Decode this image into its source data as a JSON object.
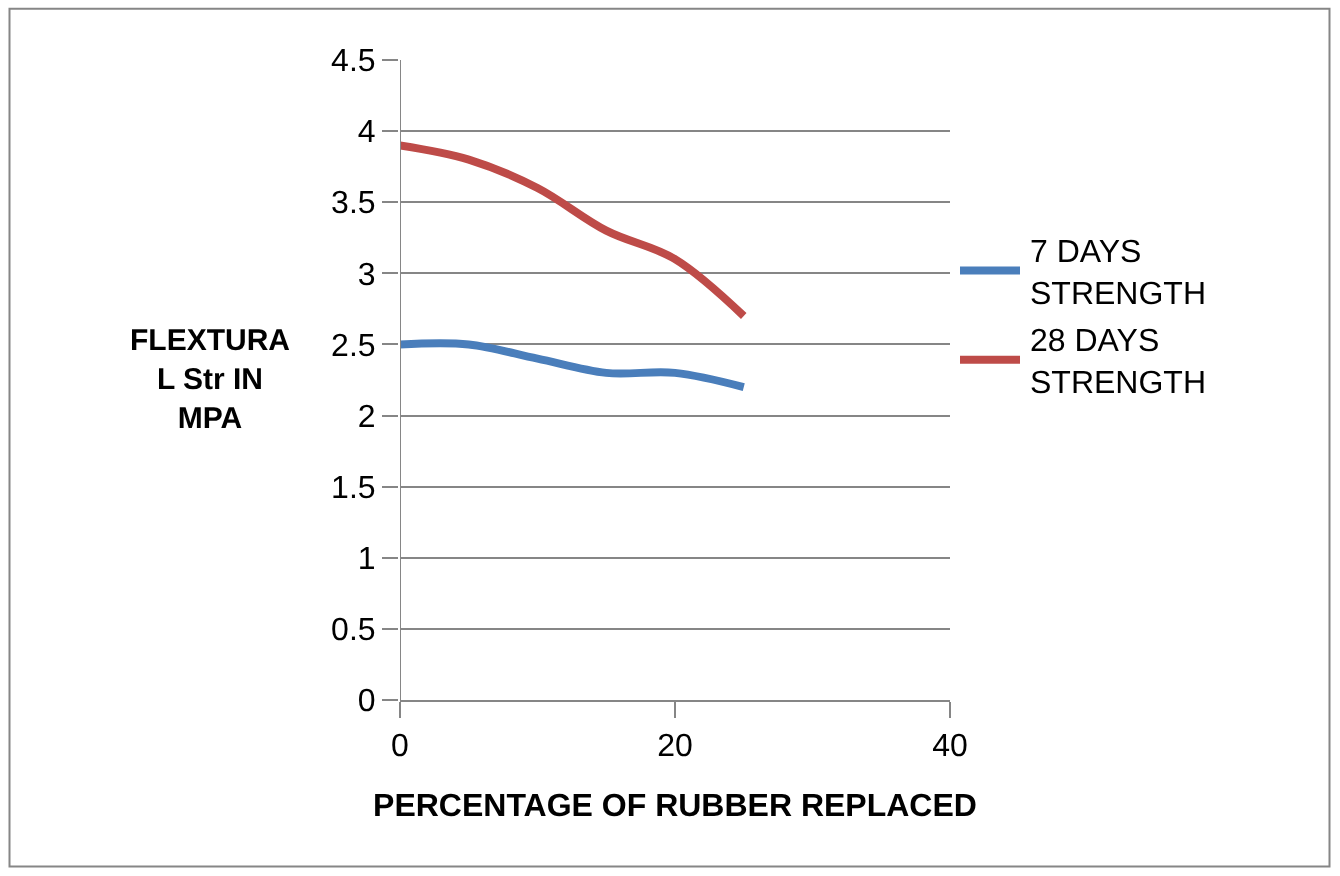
{
  "chart_data": {
    "type": "line",
    "xlabel": "PERCENTAGE OF RUBBER REPLACED",
    "ylabel": "FLEXTURAL Str IN MPA",
    "series": [
      {
        "name": "7 DAYS STRENGTH",
        "color": "#4a7ebb",
        "x": [
          0,
          5,
          10,
          15,
          20,
          25
        ],
        "values": [
          2.5,
          2.5,
          2.4,
          2.3,
          2.3,
          2.2
        ]
      },
      {
        "name": "28 DAYS STRENGTH",
        "color": "#be4b48",
        "x": [
          0,
          5,
          10,
          15,
          20,
          25
        ],
        "values": [
          3.9,
          3.8,
          3.6,
          3.3,
          3.1,
          2.7
        ]
      }
    ],
    "xlim": [
      0,
      40
    ],
    "xticks": [
      0,
      20,
      40
    ],
    "ylim": [
      0,
      4.5
    ],
    "yticks": [
      0,
      0.5,
      1,
      1.5,
      2,
      2.5,
      3,
      3.5,
      4,
      4.5
    ],
    "grid": "y",
    "legend": "right",
    "marker": "none",
    "line_style": "solid"
  }
}
